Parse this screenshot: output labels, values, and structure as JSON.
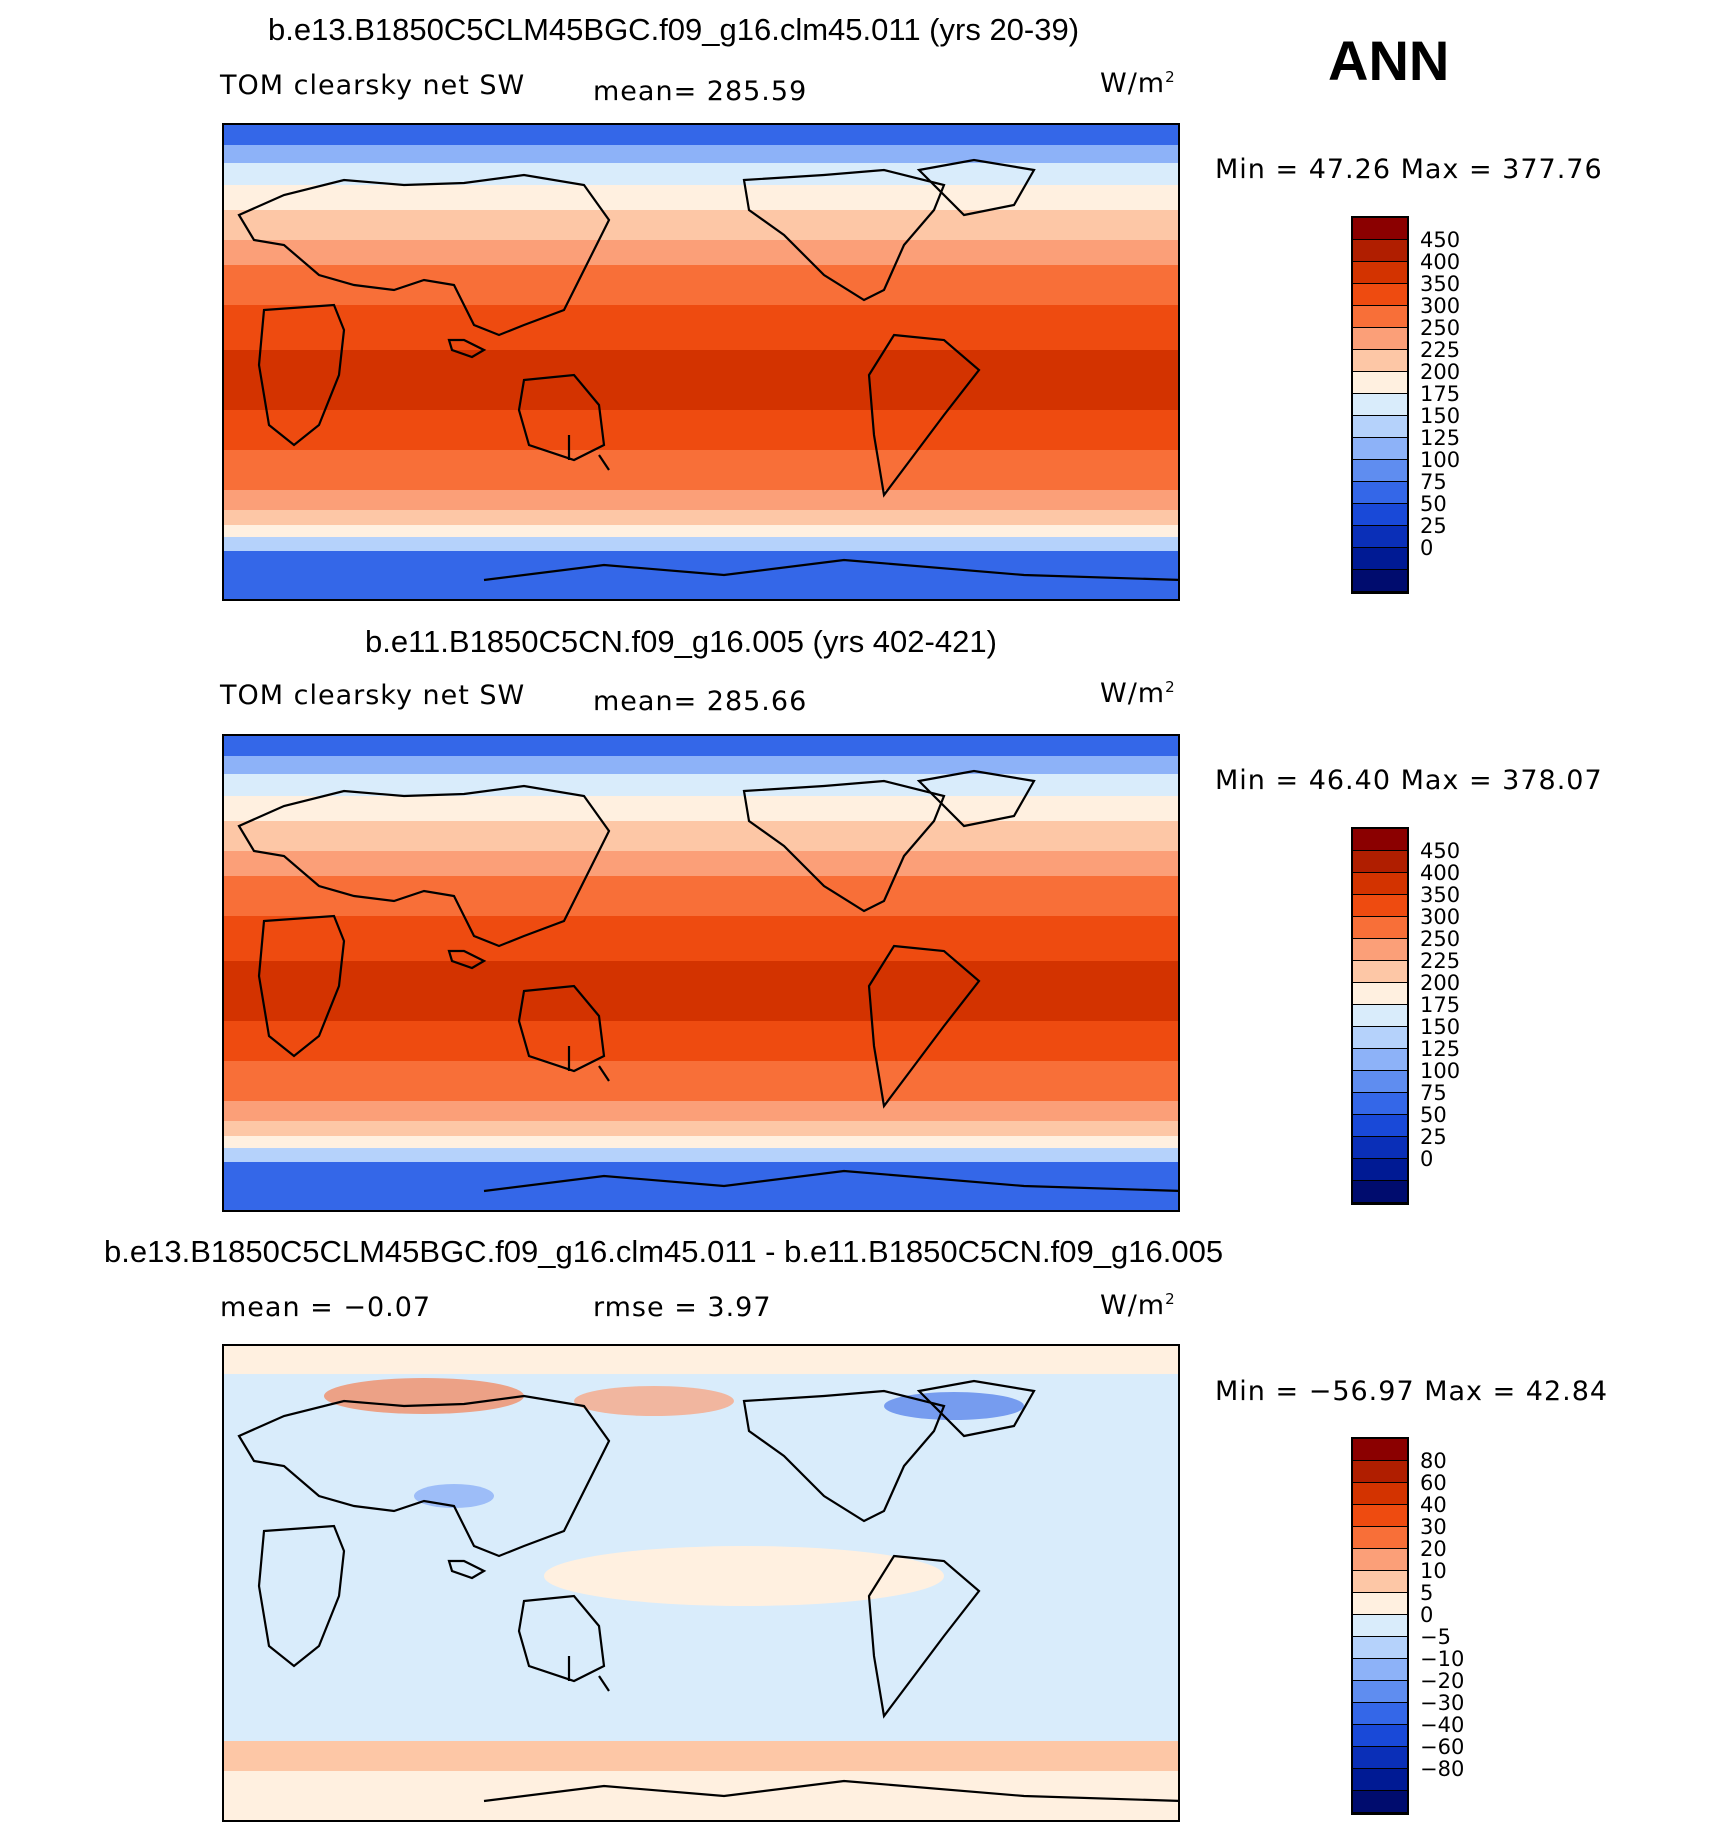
{
  "header": {
    "season": "ANN"
  },
  "panels": [
    {
      "title": "b.e13.B1850C5CLM45BGC.f09_g16.clm45.011 (yrs 20-39)",
      "left_label": "TOM clearsky net SW",
      "center_label": "mean= 285.59",
      "units": "W/m",
      "units_exp": "2",
      "minmax": "Min =   47.26 Max = 377.76",
      "colorbar": {
        "colors": [
          "#8b0000",
          "#b01e00",
          "#d33300",
          "#ee4b10",
          "#f86f38",
          "#fb9f78",
          "#fdc7a6",
          "#fff0e0",
          "#d9ecfb",
          "#b5d2fb",
          "#8db2f8",
          "#5f8df0",
          "#3467e8",
          "#1949d8",
          "#0a2fb8",
          "#001a94",
          "#000c6e"
        ],
        "labels": [
          "450",
          "400",
          "350",
          "300",
          "250",
          "225",
          "200",
          "175",
          "150",
          "125",
          "100",
          "75",
          "50",
          "25",
          "0"
        ]
      }
    },
    {
      "title": "b.e11.B1850C5CN.f09_g16.005 (yrs 402-421)",
      "left_label": "TOM clearsky net SW",
      "center_label": "mean= 285.66",
      "units": "W/m",
      "units_exp": "2",
      "minmax": "Min =   46.40 Max = 378.07",
      "colorbar": {
        "colors": [
          "#8b0000",
          "#b01e00",
          "#d33300",
          "#ee4b10",
          "#f86f38",
          "#fb9f78",
          "#fdc7a6",
          "#fff0e0",
          "#d9ecfb",
          "#b5d2fb",
          "#8db2f8",
          "#5f8df0",
          "#3467e8",
          "#1949d8",
          "#0a2fb8",
          "#001a94",
          "#000c6e"
        ],
        "labels": [
          "450",
          "400",
          "350",
          "300",
          "250",
          "225",
          "200",
          "175",
          "150",
          "125",
          "100",
          "75",
          "50",
          "25",
          "0"
        ]
      }
    },
    {
      "title": "b.e13.B1850C5CLM45BGC.f09_g16.clm45.011 - b.e11.B1850C5CN.f09_g16.005",
      "left_label": "mean =   −0.07",
      "center_label": "rmse =     3.97",
      "units": "W/m",
      "units_exp": "2",
      "minmax": "Min = −56.97 Max =   42.84",
      "colorbar": {
        "colors": [
          "#8b0000",
          "#b01e00",
          "#d33300",
          "#ee4b10",
          "#f86f38",
          "#fb9f78",
          "#fdc7a6",
          "#fff0e0",
          "#d9ecfb",
          "#b5d2fb",
          "#8db2f8",
          "#5f8df0",
          "#3467e8",
          "#1949d8",
          "#0a2fb8",
          "#001a94",
          "#000c6e"
        ],
        "labels": [
          "80",
          "60",
          "40",
          "30",
          "20",
          "10",
          "5",
          "0",
          "−5",
          "−10",
          "−20",
          "−30",
          "−40",
          "−60",
          "−80"
        ]
      }
    }
  ]
}
